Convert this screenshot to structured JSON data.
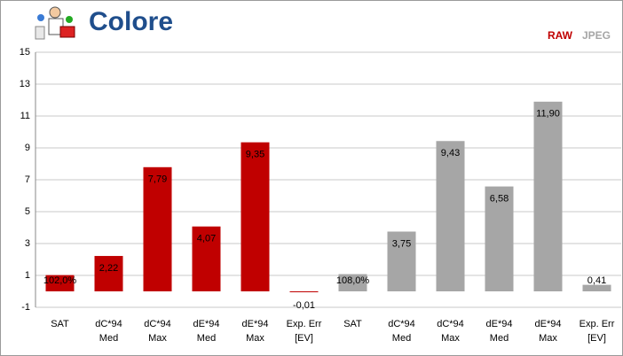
{
  "chart_data": {
    "type": "bar",
    "title": "Colore",
    "categories": [
      [
        "SAT"
      ],
      [
        "dC*94",
        "Med"
      ],
      [
        "dC*94",
        "Max"
      ],
      [
        "dE*94",
        "Med"
      ],
      [
        "dE*94",
        "Max"
      ],
      [
        "Exp. Err",
        "[EV]"
      ],
      [
        "SAT"
      ],
      [
        "dC*94",
        "Med"
      ],
      [
        "dC*94",
        "Max"
      ],
      [
        "dE*94",
        "Med"
      ],
      [
        "dE*94",
        "Max"
      ],
      [
        "Exp. Err",
        "[EV]"
      ]
    ],
    "series": [
      {
        "name": "RAW",
        "color": "#c00000",
        "values": [
          1.02,
          2.22,
          7.79,
          4.07,
          9.35,
          -0.01,
          null,
          null,
          null,
          null,
          null,
          null
        ],
        "value_labels": [
          "102,0%",
          "2,22",
          "7,79",
          "4,07",
          "9,35",
          "-0,01",
          null,
          null,
          null,
          null,
          null,
          null
        ]
      },
      {
        "name": "JPEG",
        "color": "#a6a6a6",
        "values": [
          null,
          null,
          null,
          null,
          null,
          null,
          1.08,
          3.75,
          9.43,
          6.58,
          11.9,
          0.41
        ],
        "value_labels": [
          null,
          null,
          null,
          null,
          null,
          null,
          "108,0%",
          "3,75",
          "9,43",
          "6,58",
          "11,90",
          "0,41"
        ]
      }
    ],
    "ylim": [
      -1,
      15
    ],
    "yticks": [
      -1,
      1,
      3,
      5,
      7,
      9,
      11,
      13,
      15
    ],
    "grid": true
  }
}
